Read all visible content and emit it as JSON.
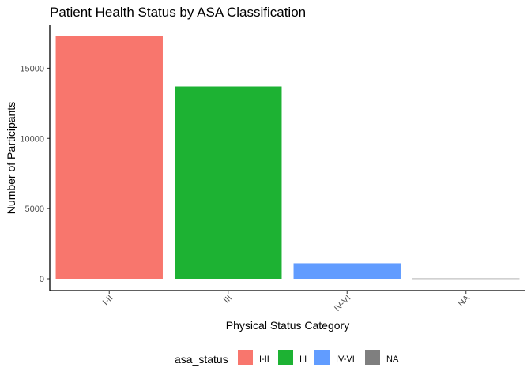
{
  "chart_data": {
    "type": "bar",
    "title": "Patient Health Status by ASA Classification",
    "xlabel": "Physical Status Category",
    "ylabel": "Number of Participants",
    "categories": [
      "I-II",
      "III",
      "IV-VI",
      "NA"
    ],
    "values": [
      17300,
      13700,
      1100,
      20
    ],
    "colors": [
      "#F8766D",
      "#1DB233",
      "#619CFF",
      "#7F7F7F"
    ],
    "ylim": [
      0,
      18000
    ],
    "yticks": [
      0,
      5000,
      10000,
      15000
    ],
    "grid": false,
    "legend": {
      "title": "asa_status",
      "position": "bottom",
      "entries": [
        "I-II",
        "III",
        "IV-VI",
        "NA"
      ]
    }
  }
}
